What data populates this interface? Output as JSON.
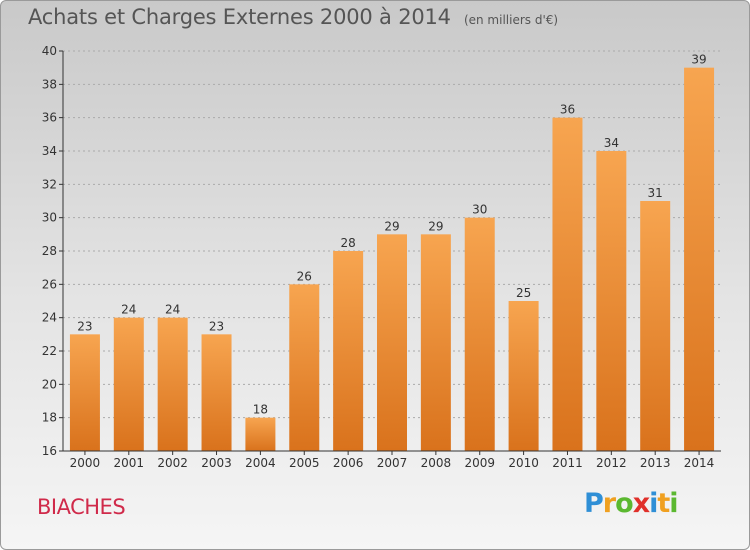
{
  "header": {
    "title": "Achats et Charges Externes 2000 à 2014",
    "subtitle": "(en milliers d'€)"
  },
  "footer": {
    "commune": "BIACHES",
    "logo_letters": [
      {
        "char": "P",
        "color": "#2f8fd6"
      },
      {
        "char": "r",
        "color": "#f0a020"
      },
      {
        "char": "o",
        "color": "#5bb830"
      },
      {
        "char": "x",
        "color": "#e0302a"
      },
      {
        "char": "i",
        "color": "#2f8fd6"
      },
      {
        "char": "t",
        "color": "#f0a020"
      },
      {
        "char": "i",
        "color": "#5bb830"
      }
    ]
  },
  "colors": {
    "bar_top": "#f7a550",
    "bar_bottom": "#d9721c",
    "axis": "#333333",
    "grid": "#aaaaaa",
    "label": "#333333"
  },
  "chart_data": {
    "type": "bar",
    "title": "Achats et Charges Externes 2000 à 2014",
    "subtitle": "(en milliers d'€)",
    "categories": [
      "2000",
      "2001",
      "2002",
      "2003",
      "2004",
      "2005",
      "2006",
      "2007",
      "2008",
      "2009",
      "2010",
      "2011",
      "2012",
      "2013",
      "2014"
    ],
    "values": [
      23,
      24,
      24,
      23,
      18,
      26,
      28,
      29,
      29,
      30,
      25,
      36,
      34,
      31,
      39
    ],
    "ylim": [
      16,
      40
    ],
    "yticks": [
      16,
      18,
      20,
      22,
      24,
      26,
      28,
      30,
      32,
      34,
      36,
      38,
      40
    ],
    "grid": true,
    "data_labels": true
  }
}
